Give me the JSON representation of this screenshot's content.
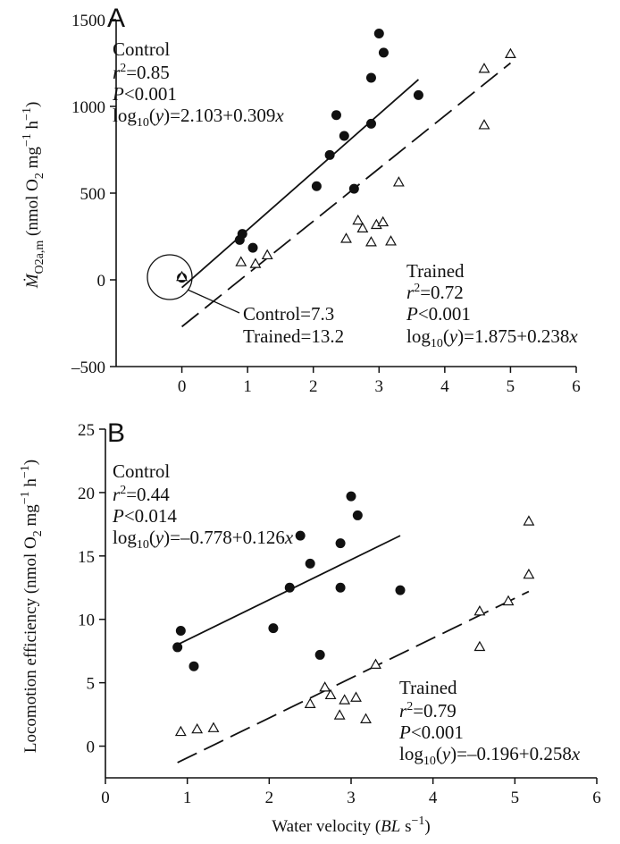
{
  "chart_data": [
    {
      "type": "scatter",
      "panel_label": "A",
      "ylabel_html": "<tspan font-style='italic'>Ṁ</tspan><tspan dy='6' font-size='14'>O2a,m</tspan><tspan dy='-6'> (nmol O</tspan><tspan dy='6' font-size='14'>2</tspan><tspan dy='-6'> mg</tspan><tspan dy='-8' font-size='14'>−1</tspan><tspan dy='8'> h</tspan><tspan dy='-8' font-size='14'>−1</tspan><tspan dy='8'>)</tspan>",
      "xlim": [
        -1,
        6
      ],
      "ylim": [
        -500,
        1500
      ],
      "xticks": [
        "0",
        "1",
        "2",
        "3",
        "4",
        "5",
        "6"
      ],
      "xtick_values": [
        0,
        1,
        2,
        3,
        4,
        5,
        6
      ],
      "yticks": [
        "–500",
        "0",
        "500",
        "1000",
        "1500"
      ],
      "ytick_values": [
        -500,
        0,
        500,
        1000,
        1500
      ],
      "series": [
        {
          "name": "Control",
          "marker": "filled-circle",
          "points": [
            [
              0,
              12
            ],
            [
              0.88,
              230
            ],
            [
              0.92,
              265
            ],
            [
              1.08,
              185
            ],
            [
              2.05,
              540
            ],
            [
              2.25,
              720
            ],
            [
              2.35,
              950
            ],
            [
              2.47,
              830
            ],
            [
              2.62,
              525
            ],
            [
              2.88,
              1165
            ],
            [
              2.88,
              900
            ],
            [
              3.0,
              1420
            ],
            [
              3.07,
              1310
            ],
            [
              3.6,
              1065
            ]
          ],
          "fit": {
            "x": [
              0,
              3.6
            ],
            "y": [
              -45,
              1155
            ],
            "style": "solid"
          },
          "annotation": [
            "Control",
            "r2=0.85",
            "P<0.001",
            "log10(y)=2.103+0.309x"
          ]
        },
        {
          "name": "Trained",
          "marker": "open-triangle",
          "points": [
            [
              0,
              15
            ],
            [
              0.9,
              100
            ],
            [
              1.12,
              90
            ],
            [
              1.3,
              140
            ],
            [
              2.5,
              235
            ],
            [
              2.68,
              340
            ],
            [
              2.75,
              295
            ],
            [
              2.88,
              215
            ],
            [
              2.96,
              315
            ],
            [
              3.06,
              330
            ],
            [
              3.18,
              220
            ],
            [
              3.3,
              560
            ],
            [
              4.6,
              1215
            ],
            [
              4.6,
              890
            ],
            [
              5.0,
              1300
            ]
          ],
          "fit": {
            "x": [
              0,
              5.0
            ],
            "y": [
              -270,
              1250
            ],
            "style": "dashed"
          },
          "annotation": [
            "Trained",
            "r2=0.72",
            "P<0.001",
            "log10(y)=1.875+0.238x"
          ]
        }
      ],
      "callout": [
        "Control=7.3",
        "Trained=13.2"
      ]
    },
    {
      "type": "scatter",
      "panel_label": "B",
      "ylabel_html": "Locomotion efficiency (nmol O<tspan dy='6' font-size='14'>2</tspan><tspan dy='-6'> mg</tspan><tspan dy='-8' font-size='14'>−1</tspan><tspan dy='8'> h</tspan><tspan dy='-8' font-size='14'>−1</tspan><tspan dy='8'>)</tspan>",
      "xlabel_html": "Water velocity (<tspan font-style='italic'>BL</tspan> s<tspan dy='-8' font-size='14'>−1</tspan><tspan dy='8'>)</tspan>",
      "xlim": [
        0,
        6
      ],
      "ylim": [
        -2.5,
        25
      ],
      "xticks": [
        "0",
        "1",
        "2",
        "3",
        "4",
        "5",
        "6"
      ],
      "xtick_values": [
        0,
        1,
        2,
        3,
        4,
        5,
        6
      ],
      "yticks": [
        "0",
        "5",
        "10",
        "15",
        "20",
        "25"
      ],
      "ytick_values": [
        0,
        5,
        10,
        15,
        20,
        25
      ],
      "series": [
        {
          "name": "Control",
          "marker": "filled-circle",
          "points": [
            [
              0.88,
              7.8
            ],
            [
              0.92,
              9.1
            ],
            [
              1.08,
              6.3
            ],
            [
              2.05,
              9.3
            ],
            [
              2.25,
              12.5
            ],
            [
              2.38,
              16.6
            ],
            [
              2.5,
              14.4
            ],
            [
              2.62,
              7.2
            ],
            [
              2.87,
              16.0
            ],
            [
              2.87,
              12.5
            ],
            [
              3.0,
              19.7
            ],
            [
              3.08,
              18.2
            ],
            [
              3.6,
              12.3
            ]
          ],
          "fit": {
            "x": [
              0.88,
              3.6
            ],
            "y": [
              8.0,
              16.6
            ],
            "style": "solid"
          },
          "annotation": [
            "Control",
            "r2=0.44",
            "P<0.014",
            "log10(y)=–0.778+0.126x"
          ]
        },
        {
          "name": "Trained",
          "marker": "open-triangle",
          "points": [
            [
              0.92,
              1.1
            ],
            [
              1.12,
              1.3
            ],
            [
              1.32,
              1.4
            ],
            [
              2.5,
              3.3
            ],
            [
              2.68,
              4.6
            ],
            [
              2.75,
              4.0
            ],
            [
              2.86,
              2.4
            ],
            [
              2.92,
              3.6
            ],
            [
              3.06,
              3.8
            ],
            [
              3.18,
              2.1
            ],
            [
              3.3,
              6.4
            ],
            [
              4.57,
              10.6
            ],
            [
              4.57,
              7.8
            ],
            [
              4.92,
              11.4
            ],
            [
              5.17,
              17.7
            ],
            [
              5.17,
              13.5
            ]
          ],
          "fit": {
            "x": [
              0.88,
              5.17
            ],
            "y": [
              -1.3,
              12.2
            ],
            "style": "dashed"
          },
          "annotation": [
            "Trained",
            "r2=0.79",
            "P<0.001",
            "log10(y)=–0.196+0.258x"
          ]
        }
      ]
    }
  ]
}
